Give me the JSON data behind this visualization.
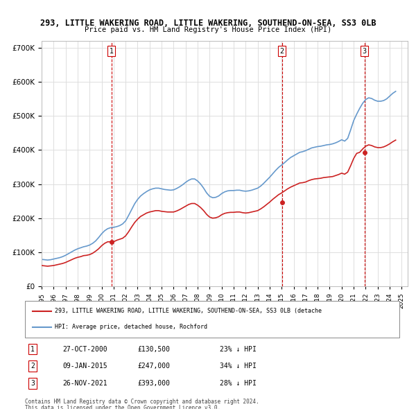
{
  "title_line1": "293, LITTLE WAKERING ROAD, LITTLE WAKERING, SOUTHEND-ON-SEA, SS3 0LB",
  "title_line2": "Price paid vs. HM Land Registry's House Price Index (HPI)",
  "ylabel_ticks": [
    "£0",
    "£100K",
    "£200K",
    "£300K",
    "£400K",
    "£500K",
    "£600K",
    "£700K"
  ],
  "ytick_values": [
    0,
    100000,
    200000,
    300000,
    400000,
    500000,
    600000,
    700000
  ],
  "ylim": [
    0,
    720000
  ],
  "xlim_start": 1995.0,
  "xlim_end": 2025.5,
  "hpi_color": "#6699cc",
  "price_color": "#cc2222",
  "transaction_color": "#cc2222",
  "vline_color": "#cc0000",
  "background_color": "#ffffff",
  "grid_color": "#dddddd",
  "transactions": [
    {
      "date_num": 2000.82,
      "price": 130500,
      "label": "1",
      "date_str": "27-OCT-2000",
      "pct": "23%",
      "dir": "↓"
    },
    {
      "date_num": 2015.03,
      "price": 247000,
      "label": "2",
      "date_str": "09-JAN-2015",
      "pct": "34%",
      "dir": "↓"
    },
    {
      "date_num": 2021.91,
      "price": 393000,
      "label": "3",
      "date_str": "26-NOV-2021",
      "pct": "28%",
      "dir": "↓"
    }
  ],
  "hpi_data": {
    "years": [
      1995.0,
      1995.25,
      1995.5,
      1995.75,
      1996.0,
      1996.25,
      1996.5,
      1996.75,
      1997.0,
      1997.25,
      1997.5,
      1997.75,
      1998.0,
      1998.25,
      1998.5,
      1998.75,
      1999.0,
      1999.25,
      1999.5,
      1999.75,
      2000.0,
      2000.25,
      2000.5,
      2000.75,
      2001.0,
      2001.25,
      2001.5,
      2001.75,
      2002.0,
      2002.25,
      2002.5,
      2002.75,
      2003.0,
      2003.25,
      2003.5,
      2003.75,
      2004.0,
      2004.25,
      2004.5,
      2004.75,
      2005.0,
      2005.25,
      2005.5,
      2005.75,
      2006.0,
      2006.25,
      2006.5,
      2006.75,
      2007.0,
      2007.25,
      2007.5,
      2007.75,
      2008.0,
      2008.25,
      2008.5,
      2008.75,
      2009.0,
      2009.25,
      2009.5,
      2009.75,
      2010.0,
      2010.25,
      2010.5,
      2010.75,
      2011.0,
      2011.25,
      2011.5,
      2011.75,
      2012.0,
      2012.25,
      2012.5,
      2012.75,
      2013.0,
      2013.25,
      2013.5,
      2013.75,
      2014.0,
      2014.25,
      2014.5,
      2014.75,
      2015.0,
      2015.25,
      2015.5,
      2015.75,
      2016.0,
      2016.25,
      2016.5,
      2016.75,
      2017.0,
      2017.25,
      2017.5,
      2017.75,
      2018.0,
      2018.25,
      2018.5,
      2018.75,
      2019.0,
      2019.25,
      2019.5,
      2019.75,
      2020.0,
      2020.25,
      2020.5,
      2020.75,
      2021.0,
      2021.25,
      2021.5,
      2021.75,
      2022.0,
      2022.25,
      2022.5,
      2022.75,
      2023.0,
      2023.25,
      2023.5,
      2023.75,
      2024.0,
      2024.25,
      2024.5
    ],
    "values": [
      79000,
      78000,
      77000,
      78000,
      80000,
      82000,
      84000,
      87000,
      91000,
      96000,
      101000,
      106000,
      110000,
      113000,
      116000,
      118000,
      121000,
      126000,
      133000,
      143000,
      154000,
      163000,
      169000,
      172000,
      173000,
      175000,
      178000,
      183000,
      192000,
      208000,
      225000,
      242000,
      255000,
      265000,
      272000,
      278000,
      283000,
      286000,
      288000,
      288000,
      286000,
      284000,
      283000,
      282000,
      283000,
      287000,
      292000,
      298000,
      305000,
      311000,
      315000,
      315000,
      309000,
      300000,
      288000,
      274000,
      264000,
      260000,
      261000,
      265000,
      272000,
      277000,
      280000,
      281000,
      281000,
      282000,
      282000,
      280000,
      279000,
      280000,
      282000,
      285000,
      288000,
      294000,
      302000,
      311000,
      320000,
      330000,
      340000,
      349000,
      356000,
      363000,
      371000,
      378000,
      383000,
      388000,
      393000,
      395000,
      398000,
      402000,
      406000,
      408000,
      410000,
      411000,
      413000,
      415000,
      416000,
      418000,
      421000,
      425000,
      430000,
      426000,
      434000,
      459000,
      486000,
      505000,
      522000,
      537000,
      548000,
      553000,
      551000,
      546000,
      543000,
      543000,
      545000,
      550000,
      558000,
      566000,
      572000
    ]
  },
  "price_paid_data": {
    "years": [
      1995.0,
      1995.25,
      1995.5,
      1995.75,
      1996.0,
      1996.25,
      1996.5,
      1996.75,
      1997.0,
      1997.25,
      1997.5,
      1997.75,
      1998.0,
      1998.25,
      1998.5,
      1998.75,
      1999.0,
      1999.25,
      1999.5,
      1999.75,
      2000.0,
      2000.25,
      2000.5,
      2000.75,
      2001.0,
      2001.25,
      2001.5,
      2001.75,
      2002.0,
      2002.25,
      2002.5,
      2002.75,
      2003.0,
      2003.25,
      2003.5,
      2003.75,
      2004.0,
      2004.25,
      2004.5,
      2004.75,
      2005.0,
      2005.25,
      2005.5,
      2005.75,
      2006.0,
      2006.25,
      2006.5,
      2006.75,
      2007.0,
      2007.25,
      2007.5,
      2007.75,
      2008.0,
      2008.25,
      2008.5,
      2008.75,
      2009.0,
      2009.25,
      2009.5,
      2009.75,
      2010.0,
      2010.25,
      2010.5,
      2010.75,
      2011.0,
      2011.25,
      2011.5,
      2011.75,
      2012.0,
      2012.25,
      2012.5,
      2012.75,
      2013.0,
      2013.25,
      2013.5,
      2013.75,
      2014.0,
      2014.25,
      2014.5,
      2014.75,
      2015.0,
      2015.25,
      2015.5,
      2015.75,
      2016.0,
      2016.25,
      2016.5,
      2016.75,
      2017.0,
      2017.25,
      2017.5,
      2017.75,
      2018.0,
      2018.25,
      2018.5,
      2018.75,
      2019.0,
      2019.25,
      2019.5,
      2019.75,
      2020.0,
      2020.25,
      2020.5,
      2020.75,
      2021.0,
      2021.25,
      2021.5,
      2021.75,
      2022.0,
      2022.25,
      2022.5,
      2022.75,
      2023.0,
      2023.25,
      2023.5,
      2023.75,
      2024.0,
      2024.25,
      2024.5
    ],
    "values": [
      61000,
      60000,
      59000,
      60000,
      61000,
      63000,
      65000,
      67000,
      70000,
      74000,
      78000,
      82000,
      85000,
      87000,
      90000,
      91000,
      93000,
      97000,
      103000,
      110000,
      119000,
      126000,
      130500,
      130500,
      130500,
      135000,
      138000,
      141000,
      148000,
      160000,
      174000,
      187000,
      197000,
      205000,
      210000,
      215000,
      218000,
      220000,
      222000,
      222000,
      220000,
      219000,
      218000,
      218000,
      218000,
      221000,
      225000,
      230000,
      235000,
      240000,
      243000,
      243000,
      238000,
      231000,
      222000,
      211000,
      203000,
      200000,
      201000,
      204000,
      210000,
      214000,
      216000,
      217000,
      217000,
      218000,
      218000,
      216000,
      215000,
      216000,
      218000,
      220000,
      222000,
      227000,
      233000,
      240000,
      247000,
      255000,
      262000,
      269000,
      274000,
      280000,
      286000,
      291000,
      295000,
      299000,
      303000,
      304000,
      306000,
      310000,
      313000,
      315000,
      316000,
      317000,
      319000,
      320000,
      321000,
      322000,
      325000,
      328000,
      332000,
      329000,
      335000,
      354000,
      375000,
      390000,
      393000,
      403000,
      411000,
      415000,
      413000,
      409000,
      407000,
      407000,
      409000,
      413000,
      418000,
      424000,
      429000
    ]
  },
  "legend_label_red": "293, LITTLE WAKERING ROAD, LITTLE WAKERING, SOUTHEND-ON-SEA, SS3 0LB (detache",
  "legend_label_blue": "HPI: Average price, detached house, Rochford",
  "footer_line1": "Contains HM Land Registry data © Crown copyright and database right 2024.",
  "footer_line2": "This data is licensed under the Open Government Licence v3.0.",
  "xtick_years": [
    1995,
    1996,
    1997,
    1998,
    1999,
    2000,
    2001,
    2002,
    2003,
    2004,
    2005,
    2006,
    2007,
    2008,
    2009,
    2010,
    2011,
    2012,
    2013,
    2014,
    2015,
    2016,
    2017,
    2018,
    2019,
    2020,
    2021,
    2022,
    2023,
    2024,
    2025
  ]
}
